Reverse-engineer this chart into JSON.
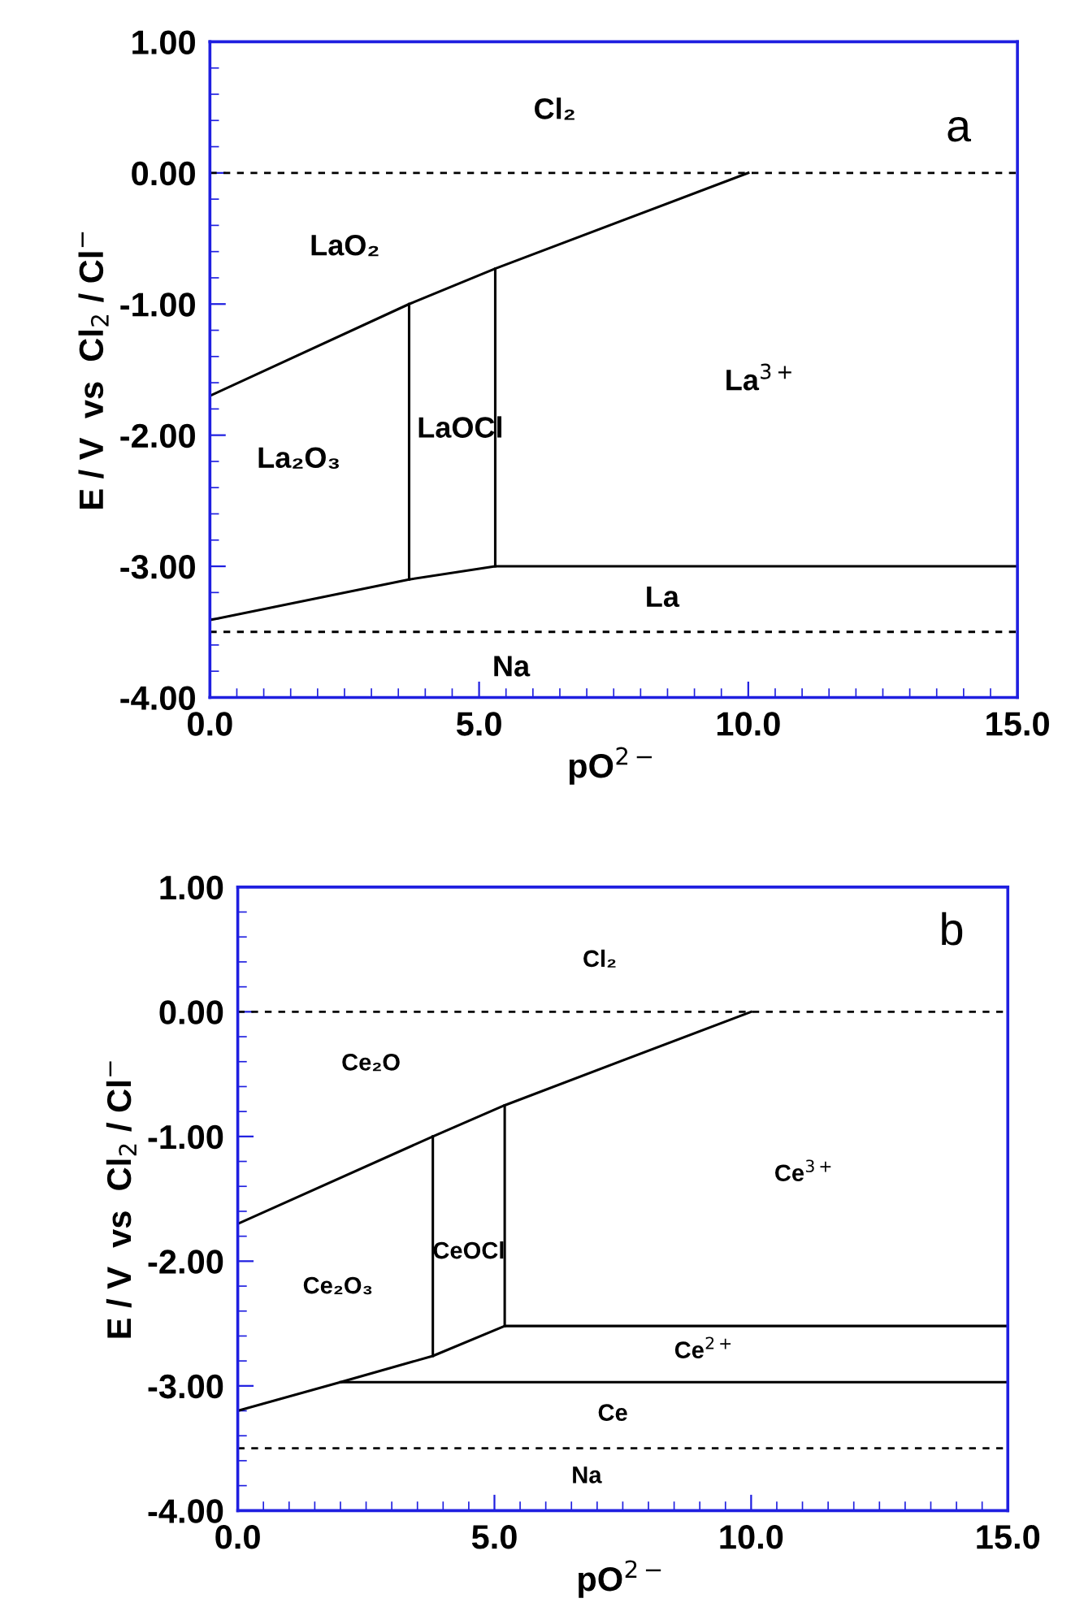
{
  "chart_data": [
    {
      "type": "line",
      "xlabel": "pO$^{2−}$",
      "ylabel": "E / V  vs  Cl$_{2}$ / Cl$^{−}$",
      "xlim": [
        0,
        15
      ],
      "ylim": [
        -4,
        1
      ],
      "xticks": [
        {
          "value": 0,
          "label": "0.0"
        },
        {
          "value": 5,
          "label": "5.0"
        },
        {
          "value": 10,
          "label": "10.0"
        },
        {
          "value": 15,
          "label": "15.0"
        }
      ],
      "yticks": [
        {
          "value": 1,
          "label": "1.00"
        },
        {
          "value": 0,
          "label": "0.00"
        },
        {
          "value": -1,
          "label": "-1.00"
        },
        {
          "value": -2,
          "label": "-2.00"
        },
        {
          "value": -3,
          "label": "-3.00"
        },
        {
          "value": -4,
          "label": "-4.00"
        }
      ],
      "grid": false,
      "legend": false,
      "marker": "none",
      "line_style": "solid",
      "series": [
        {
          "x": [
            0,
            3.7,
            5.3,
            10.0
          ],
          "values": [
            -1.7,
            -1.0,
            -0.73,
            0.0
          ],
          "color": "#000000"
        },
        {
          "x": [
            0,
            3.7,
            5.3,
            15
          ],
          "values": [
            -3.41,
            -3.1,
            -3.0,
            -3.0
          ],
          "color": "#000000"
        },
        {
          "x": [
            3.7,
            3.7
          ],
          "values": [
            -1.0,
            -3.1
          ],
          "color": "#000000"
        },
        {
          "x": [
            5.3,
            5.3
          ],
          "values": [
            -0.73,
            -3.0
          ],
          "color": "#000000"
        }
      ],
      "ref_lines": [
        {
          "axis": "y",
          "value": 0,
          "color": "#000000",
          "line_style": "dashed"
        },
        {
          "axis": "y",
          "value": -3.5,
          "color": "#000000",
          "line_style": "dashed"
        }
      ],
      "annotations": [
        "a",
        "Cl₂",
        "LaO₂",
        "La₂O₃",
        "LaOCl",
        "La$^{3+}$",
        "La",
        "Na"
      ]
    },
    {
      "type": "line",
      "xlabel": "pO$^{2−}$",
      "ylabel": "E / V  vs  Cl$_{2}$ / Cl$^{−}$",
      "xlim": [
        0,
        15
      ],
      "ylim": [
        -4,
        1
      ],
      "xticks": [
        {
          "value": 0,
          "label": "0.0"
        },
        {
          "value": 5,
          "label": "5.0"
        },
        {
          "value": 10,
          "label": "10.0"
        },
        {
          "value": 15,
          "label": "15.0"
        }
      ],
      "yticks": [
        {
          "value": 1,
          "label": "1.00"
        },
        {
          "value": 0,
          "label": "0.00"
        },
        {
          "value": -1,
          "label": "-1.00"
        },
        {
          "value": -2,
          "label": "-2.00"
        },
        {
          "value": -3,
          "label": "-3.00"
        },
        {
          "value": -4,
          "label": "-4.00"
        }
      ],
      "grid": false,
      "legend": false,
      "marker": "none",
      "line_style": "solid",
      "series": [
        {
          "x": [
            0,
            3.8,
            5.2,
            10.0
          ],
          "values": [
            -1.7,
            -1.0,
            -0.75,
            0.0
          ],
          "color": "#000000"
        },
        {
          "x": [
            0,
            2.0,
            3.8,
            5.2,
            15
          ],
          "values": [
            -3.2,
            -2.97,
            -2.76,
            -2.52,
            -2.52
          ],
          "color": "#000000"
        },
        {
          "x": [
            2.0,
            15
          ],
          "values": [
            -2.97,
            -2.97
          ],
          "color": "#000000"
        },
        {
          "x": [
            3.8,
            3.8
          ],
          "values": [
            -1.0,
            -2.76
          ],
          "color": "#000000"
        },
        {
          "x": [
            5.2,
            5.2
          ],
          "values": [
            -0.75,
            -2.52
          ],
          "color": "#000000"
        }
      ],
      "ref_lines": [
        {
          "axis": "y",
          "value": 0,
          "color": "#000000",
          "line_style": "dashed"
        },
        {
          "axis": "y",
          "value": -3.5,
          "color": "#000000",
          "line_style": "dashed"
        }
      ],
      "annotations": [
        "b",
        "Cl₂",
        "Ce₂O",
        "Ce$^{3+}$",
        "CeOCl",
        "Ce₂O₃",
        "Ce$^{2+}$",
        "Ce",
        "Na"
      ]
    }
  ]
}
